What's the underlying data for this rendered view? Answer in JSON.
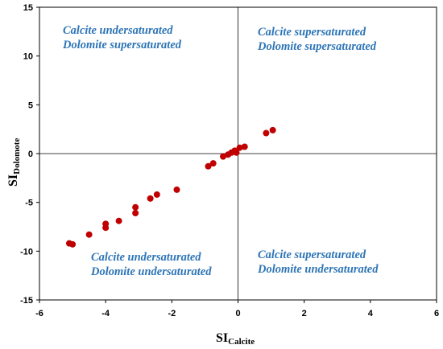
{
  "chart_data": {
    "type": "scatter",
    "xlabel_main": "SI",
    "xlabel_sub": "Calcite",
    "ylabel_main": "SI",
    "ylabel_sub": "Dolomote",
    "xlim": [
      -6,
      6
    ],
    "ylim": [
      -15,
      15
    ],
    "xticks": [
      "-6",
      "-4",
      "-2",
      "0",
      "2",
      "4",
      "6"
    ],
    "yticks": [
      "15",
      "10",
      "5",
      "0",
      "-5",
      "-10",
      "-15"
    ],
    "marker_color": "#C00000",
    "quadrant_label_color": "#2E75B6",
    "quadrants": {
      "top_left": {
        "line1": "Calcite undersaturated",
        "line2": "Dolomite supersaturated"
      },
      "top_right": {
        "line1": "Calcite supersaturated",
        "line2": "Dolomite supersaturated"
      },
      "bottom_left": {
        "line1": "Calcite undersaturated",
        "line2": "Dolomite undersaturated"
      },
      "bottom_right": {
        "line1": "Calcite supersaturated",
        "line2": "Dolomite undersaturated"
      }
    },
    "points": [
      {
        "x": -5.1,
        "y": -9.2
      },
      {
        "x": -5.0,
        "y": -9.3
      },
      {
        "x": -4.5,
        "y": -8.3
      },
      {
        "x": -4.0,
        "y": -7.6
      },
      {
        "x": -4.0,
        "y": -7.2
      },
      {
        "x": -3.6,
        "y": -6.9
      },
      {
        "x": -3.1,
        "y": -6.1
      },
      {
        "x": -3.1,
        "y": -5.5
      },
      {
        "x": -2.65,
        "y": -4.6
      },
      {
        "x": -2.45,
        "y": -4.2
      },
      {
        "x": -1.85,
        "y": -3.7
      },
      {
        "x": -0.9,
        "y": -1.3
      },
      {
        "x": -0.75,
        "y": -1.0
      },
      {
        "x": -0.45,
        "y": -0.3
      },
      {
        "x": -0.3,
        "y": -0.1
      },
      {
        "x": -0.2,
        "y": 0.1
      },
      {
        "x": -0.1,
        "y": 0.3
      },
      {
        "x": -0.05,
        "y": 0.1
      },
      {
        "x": 0.05,
        "y": 0.6
      },
      {
        "x": 0.2,
        "y": 0.7
      },
      {
        "x": 0.85,
        "y": 2.1
      },
      {
        "x": 1.05,
        "y": 2.4
      }
    ]
  }
}
